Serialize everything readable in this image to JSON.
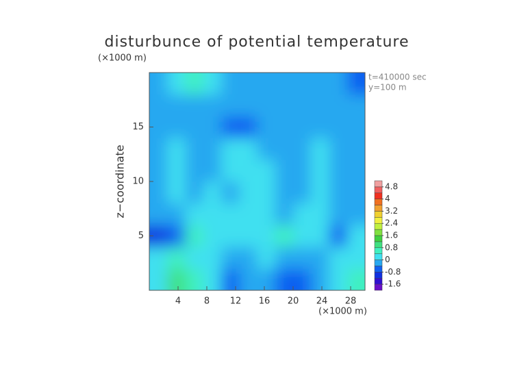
{
  "chart_data": {
    "type": "contour",
    "title": "disturbunce of potential temperature",
    "y_unit": "(×1000 m)",
    "x_unit": "(×1000 m)",
    "ylabel": "z−coordinate",
    "annotations": [
      "t=410000 sec",
      "y=100 m"
    ],
    "xlim": [
      0,
      30
    ],
    "ylim": [
      0,
      20
    ],
    "xticks": [
      4,
      8,
      12,
      16,
      20,
      24,
      28
    ],
    "yticks": [
      5,
      10,
      15
    ],
    "x": [
      1.25,
      3.75,
      6.25,
      8.75,
      11.25,
      13.75,
      16.25,
      18.75,
      21.25,
      23.75,
      26.25,
      28.75
    ],
    "y": [
      1,
      3,
      5,
      7,
      9,
      11,
      13,
      15,
      17,
      19
    ],
    "z": [
      [
        0.3,
        0.9,
        0.7,
        0.0,
        -0.5,
        -0.3,
        -0.2,
        -0.6,
        -0.6,
        -0.4,
        0.0,
        0.5
      ],
      [
        0.2,
        0.6,
        0.3,
        0.1,
        -0.3,
        -0.1,
        0.0,
        -0.4,
        -0.4,
        -0.2,
        0.1,
        0.2
      ],
      [
        -0.9,
        -0.5,
        0.4,
        0.3,
        0.1,
        0.2,
        0.3,
        0.5,
        0.3,
        0.0,
        -0.5,
        0.0
      ],
      [
        -0.4,
        -0.2,
        0.0,
        0.1,
        0.0,
        0.1,
        0.0,
        -0.1,
        0.3,
        0.0,
        -0.1,
        -0.2
      ],
      [
        -0.2,
        0.0,
        -0.1,
        0.0,
        -0.1,
        0.0,
        0.2,
        -0.1,
        -0.3,
        0.0,
        -0.2,
        -0.1
      ],
      [
        -0.1,
        0.0,
        -0.2,
        -0.1,
        0.1,
        0.1,
        0.0,
        -0.1,
        -0.3,
        0.0,
        -0.2,
        -0.1
      ],
      [
        -0.2,
        0.0,
        -0.1,
        -0.2,
        0.0,
        0.0,
        -0.1,
        -0.2,
        -0.3,
        0.0,
        -0.3,
        -0.1
      ],
      [
        -0.1,
        -0.2,
        -0.1,
        -0.3,
        -0.5,
        -0.5,
        -0.4,
        -0.3,
        -0.3,
        -0.2,
        -0.1,
        -0.2
      ],
      [
        -0.3,
        -0.2,
        -0.1,
        -0.1,
        -0.2,
        -0.3,
        -0.2,
        -0.2,
        -0.3,
        -0.1,
        -0.2,
        -0.3
      ],
      [
        -0.4,
        0.2,
        0.7,
        0.3,
        -0.2,
        -0.3,
        -0.3,
        -0.4,
        -0.3,
        -0.2,
        -0.4,
        -0.6
      ]
    ],
    "levels": [
      -2.0,
      -1.6,
      -1.2,
      -0.8,
      -0.4,
      0,
      0.4,
      0.8,
      1.2,
      1.6,
      2.0,
      2.4,
      2.8,
      3.2,
      3.6,
      4.0,
      4.4,
      4.8,
      5.2
    ],
    "colors": [
      "#6a10c8",
      "#3010d0",
      "#1030e0",
      "#1060f0",
      "#28a8f0",
      "#40e0f0",
      "#40f0c0",
      "#40e080",
      "#40d040",
      "#80e040",
      "#c0f040",
      "#f0f040",
      "#f0d030",
      "#f0a030",
      "#f07020",
      "#f03020",
      "#f06060",
      "#f0a0a0"
    ],
    "colorbar_ticks": [
      -1.6,
      -0.8,
      0,
      0.8,
      1.6,
      2.4,
      3.2,
      4,
      4.8
    ]
  }
}
